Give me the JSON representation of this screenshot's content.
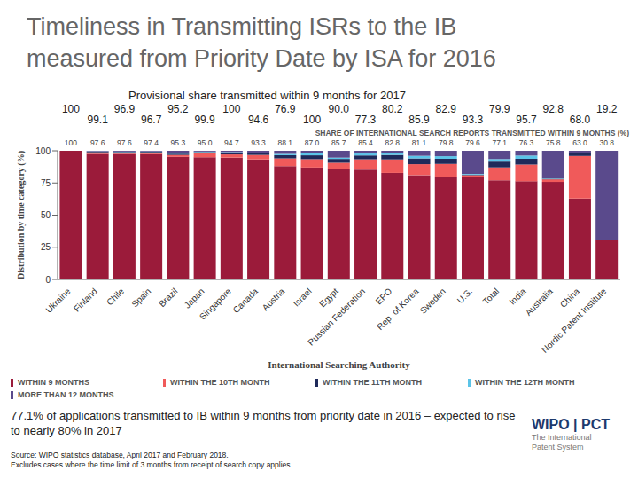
{
  "title": "Timeliness in Transmitting ISRs to the IB measured from Priority Date by ISA for 2016",
  "provisional_2017": {
    "title": "Provisional share transmitted within 9 months for 2017",
    "values": [
      100,
      99.1,
      96.9,
      96.7,
      95.2,
      99.9,
      100,
      94.6,
      76.9,
      100,
      90.0,
      77.3,
      80.2,
      85.9,
      82.9,
      93.3,
      79.9,
      95.7,
      92.8,
      68.0,
      19.2
    ],
    "value_labels": [
      "100",
      "99.1",
      "96.9",
      "96.7",
      "95.2",
      "99.9",
      "100",
      "94.6",
      "76.9",
      "100",
      "90.0",
      "77.3",
      "80.2",
      "85.9",
      "82.9",
      "93.3",
      "79.9",
      "95.7",
      "92.8",
      "68.0",
      "19.2"
    ]
  },
  "share_header": "SHARE OF INTERNATIONAL SEARCH REPORTS TRANSMITTED WITHIN 9 MONTHS (%)",
  "chart_data": {
    "type": "bar",
    "stacked": true,
    "grid": false,
    "legend": "bottom",
    "xlabel": "International Searching Authority",
    "ylabel": "Distribution by time category (%)",
    "ylim": [
      0,
      100
    ],
    "yticks": [
      0,
      25,
      50,
      75,
      100
    ],
    "categories": [
      "Ukraine",
      "Finland",
      "Chile",
      "Spain",
      "Brazil",
      "Japan",
      "Singapore",
      "Canada",
      "Austria",
      "Israel",
      "Egypt",
      "Russian Federation",
      "EPO",
      "Rep. of Korea",
      "Sweden",
      "U.S.",
      "Total",
      "India",
      "Australia",
      "China",
      "Nordic Patent Institute"
    ],
    "series": [
      {
        "name": "WITHIN 9 MONTHS",
        "color": "#9b1b3a",
        "data_labels": true,
        "values": [
          100,
          97.6,
          97.6,
          97.4,
          95.3,
          95.0,
          94.7,
          93.3,
          88.1,
          87.0,
          85.7,
          85.4,
          82.8,
          81.1,
          79.8,
          79.6,
          77.1,
          76.3,
          75.8,
          63.0,
          30.8
        ],
        "value_labels": [
          "100",
          "97.6",
          "97.6",
          "97.4",
          "95.3",
          "95.0",
          "94.7",
          "93.3",
          "88.1",
          "87.0",
          "85.7",
          "85.4",
          "82.8",
          "81.1",
          "79.8",
          "79.6",
          "77.1",
          "76.3",
          "75.8",
          "63.0",
          "30.8"
        ]
      },
      {
        "name": "WITHIN THE 10TH MONTH",
        "color": "#f05a5a",
        "values": [
          0,
          1.2,
          1.0,
          1.2,
          1.5,
          3.0,
          2.5,
          3.5,
          6.0,
          6.5,
          5.0,
          8.0,
          10.5,
          8.5,
          10.0,
          1.5,
          10.0,
          13.0,
          2.0,
          33.0,
          0
        ]
      },
      {
        "name": "WITHIN THE 11TH MONTH",
        "color": "#1f2a5a",
        "values": [
          0,
          0.6,
          0.5,
          0.6,
          1.0,
          1.0,
          1.3,
          1.2,
          2.5,
          3.0,
          3.0,
          3.0,
          3.5,
          4.5,
          4.0,
          0.5,
          4.5,
          4.5,
          0.5,
          2.0,
          0
        ]
      },
      {
        "name": "WITHIN THE 12TH MONTH",
        "color": "#5bc4e8",
        "values": [
          0,
          0.2,
          0.3,
          0.3,
          0.5,
          0.4,
          0.5,
          0.6,
          1.0,
          1.5,
          1.0,
          1.5,
          1.5,
          2.0,
          2.0,
          0.5,
          2.0,
          2.5,
          0.3,
          0.5,
          0
        ]
      },
      {
        "name": "MORE THAN 12 MONTHS",
        "color": "#5a4a8c",
        "values": [
          0,
          0.4,
          0.6,
          0.5,
          1.7,
          0.6,
          1.0,
          1.4,
          2.4,
          2.0,
          5.3,
          2.1,
          1.7,
          3.9,
          4.2,
          17.9,
          6.4,
          3.7,
          21.4,
          1.5,
          69.2
        ]
      }
    ]
  },
  "footnote": "77.1% of applications transmitted to IB within 9 months from priority date in 2016 – expected to rise to nearly 80% in 2017",
  "source": [
    "Source: WIPO statistics database, April 2017 and February 2018.",
    "Excludes cases where the time limit of 3 months from receipt of search copy applies."
  ],
  "logo": {
    "name": "WIPO | PCT",
    "tagline": "The International Patent System"
  }
}
